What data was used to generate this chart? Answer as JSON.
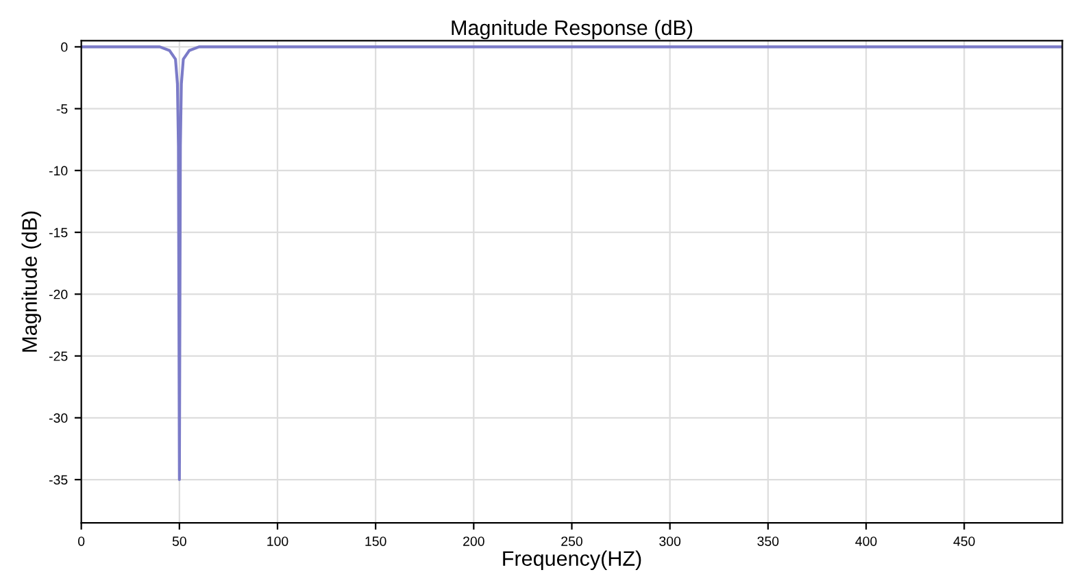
{
  "chart_data": {
    "type": "line",
    "title": "Magnitude Response (dB)",
    "xlabel": "Frequency(HZ)",
    "ylabel": "Magnitude (dB)",
    "series": [
      {
        "color": "#7b7bc8",
        "x": [
          0,
          40,
          45,
          48,
          49,
          49.5,
          50,
          50.5,
          51,
          52,
          55,
          60,
          500
        ],
        "values": [
          0,
          0,
          -0.3,
          -1,
          -3,
          -8,
          -35,
          -8,
          -3,
          -1,
          -0.3,
          0,
          0
        ]
      }
    ],
    "xlim": [
      0,
      500
    ],
    "xticks": [
      0,
      50,
      100,
      150,
      200,
      250,
      300,
      350,
      400,
      450
    ],
    "ylim": [
      -38.5,
      0.5
    ],
    "yticks": [
      0,
      -5,
      -10,
      -15,
      -20,
      -25,
      -30,
      -35
    ],
    "grid": true,
    "marker": "none",
    "line_style": "solid"
  }
}
